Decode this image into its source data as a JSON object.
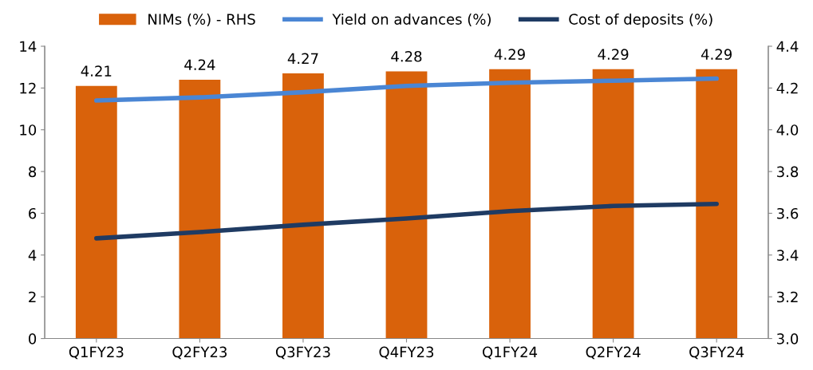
{
  "chart_data": {
    "type": "bar",
    "categories": [
      "Q1FY23",
      "Q2FY23",
      "Q3FY23",
      "Q4FY23",
      "Q1FY24",
      "Q2FY24",
      "Q3FY24"
    ],
    "series": [
      {
        "name": "NIMs (%) - RHS",
        "axis": "y2",
        "color": "#d9620b",
        "values": [
          4.21,
          4.24,
          4.27,
          4.28,
          4.29,
          4.29,
          4.29
        ],
        "value_labels": [
          "4.21",
          "4.24",
          "4.27",
          "4.28",
          "4.29",
          "4.29",
          "4.29"
        ]
      },
      {
        "name": "Yield on advances (%)",
        "type": "line",
        "color": "#4a86d4",
        "values": [
          11.4,
          11.55,
          11.8,
          12.1,
          12.25,
          12.35,
          12.45
        ]
      },
      {
        "name": "Cost of deposits (%)",
        "type": "line",
        "color": "#1f3b63",
        "values": [
          4.8,
          5.1,
          5.45,
          5.75,
          6.1,
          6.35,
          6.45
        ]
      }
    ],
    "ylim": [
      0,
      14
    ],
    "yticks": [
      0,
      2,
      4,
      6,
      8,
      10,
      12,
      14
    ],
    "y2lim": [
      3.0,
      4.4
    ],
    "y2ticks": [
      {
        "value": 3.0,
        "label": "3.0"
      },
      {
        "value": 3.2,
        "label": "3.2"
      },
      {
        "value": 3.4,
        "label": "3.4"
      },
      {
        "value": 3.6,
        "label": "3.6"
      },
      {
        "value": 3.8,
        "label": "3.8"
      },
      {
        "value": 4.0,
        "label": "4.0"
      },
      {
        "value": 4.2,
        "label": "4.2"
      },
      {
        "value": 4.4,
        "label": "4.4"
      }
    ],
    "legend": "top",
    "grid": false,
    "marker": "none",
    "line_style": "solid"
  }
}
